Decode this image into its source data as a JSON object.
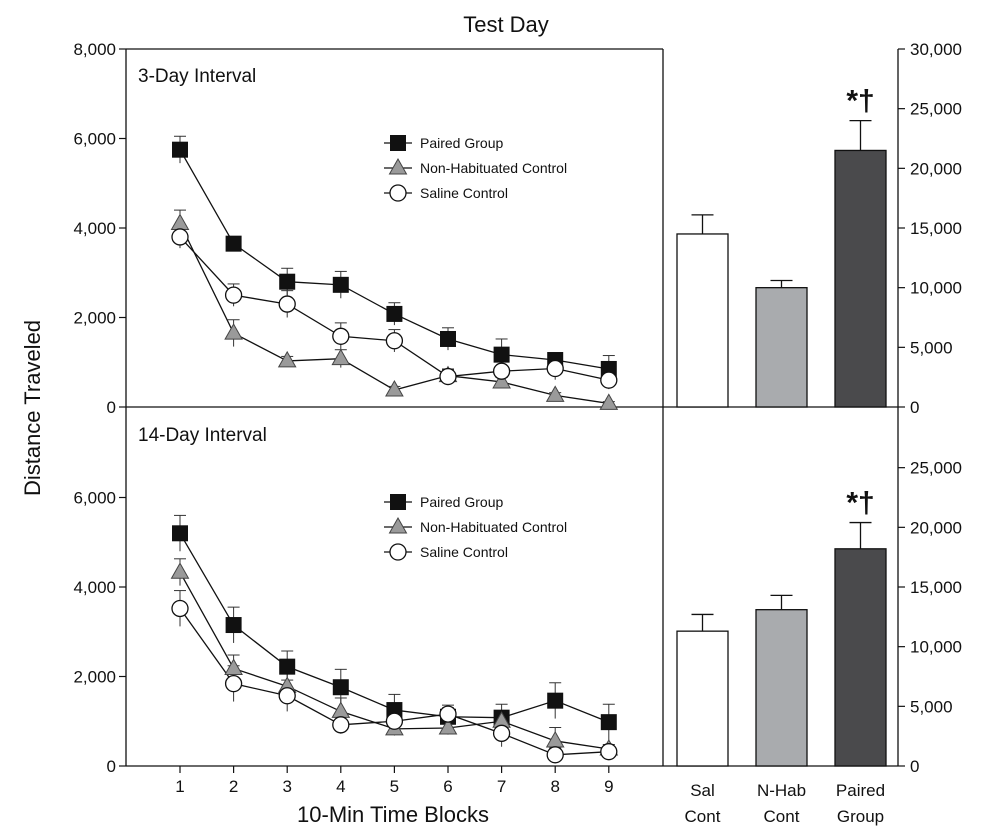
{
  "title": "Test Day",
  "ylabel": "Distance Traveled",
  "xlabel": "10-Min Time Blocks",
  "chart_data": [
    {
      "type": "line",
      "panel": "3-Day Interval",
      "x": [
        1,
        2,
        3,
        4,
        5,
        6,
        7,
        8,
        9
      ],
      "ylim": [
        0,
        8000
      ],
      "yticks": [
        "0",
        "2,000",
        "4,000",
        "6,000",
        "8,000"
      ],
      "legend_position": "top-center",
      "series": [
        {
          "name": "Paired Group",
          "marker": "square",
          "color": "#111111",
          "values": [
            5750,
            3650,
            2800,
            2730,
            2080,
            1520,
            1170,
            1050,
            850
          ],
          "errors": [
            300,
            150,
            300,
            300,
            250,
            250,
            350,
            150,
            300
          ]
        },
        {
          "name": "Non-Habituated Control",
          "marker": "triangle",
          "color": "#999999",
          "values": [
            4100,
            1650,
            1030,
            1080,
            380,
            700,
            560,
            260,
            80
          ],
          "errors": [
            300,
            300,
            100,
            200,
            80,
            150,
            100,
            60,
            40
          ]
        },
        {
          "name": "Saline Control",
          "marker": "circle",
          "color": "#ffffff",
          "values": [
            3800,
            2500,
            2300,
            1580,
            1480,
            680,
            800,
            860,
            600
          ],
          "errors": [
            250,
            250,
            300,
            300,
            250,
            150,
            250,
            250,
            200
          ]
        }
      ]
    },
    {
      "type": "bar",
      "panel": "3-Day Interval totals",
      "categories": [
        "Sal Cont",
        "N-Hab Cont",
        "Paired Group"
      ],
      "values": [
        14500,
        10000,
        21500
      ],
      "errors": [
        1600,
        600,
        2500
      ],
      "colors": [
        "#ffffff",
        "#a9abae",
        "#4a4a4c"
      ],
      "ylim": [
        0,
        30000
      ],
      "yticks": [
        "0",
        "5,000",
        "10,000",
        "15,000",
        "20,000",
        "25,000",
        "30,000"
      ],
      "annotation": "*†"
    },
    {
      "type": "line",
      "panel": "14-Day Interval",
      "x": [
        1,
        2,
        3,
        4,
        5,
        6,
        7,
        8,
        9
      ],
      "ylim": [
        0,
        8000
      ],
      "yticks": [
        "0",
        "2,000",
        "4,000",
        "6,000"
      ],
      "legend_position": "top-center",
      "series": [
        {
          "name": "Paired Group",
          "marker": "square",
          "color": "#111111",
          "values": [
            5200,
            3150,
            2220,
            1760,
            1250,
            1100,
            1080,
            1460,
            980
          ],
          "errors": [
            400,
            400,
            350,
            400,
            350,
            200,
            300,
            400,
            400
          ]
        },
        {
          "name": "Non-Habituated Control",
          "marker": "triangle",
          "color": "#999999",
          "values": [
            4330,
            2180,
            1780,
            1220,
            830,
            850,
            1000,
            560,
            380
          ],
          "errors": [
            300,
            300,
            300,
            300,
            150,
            150,
            200,
            300,
            100
          ]
        },
        {
          "name": "Saline Control",
          "marker": "circle",
          "color": "#ffffff",
          "values": [
            3520,
            1840,
            1570,
            920,
            1000,
            1160,
            730,
            250,
            320
          ],
          "errors": [
            400,
            400,
            350,
            200,
            200,
            200,
            300,
            150,
            100
          ]
        }
      ]
    },
    {
      "type": "bar",
      "panel": "14-Day Interval totals",
      "categories": [
        "Sal Cont",
        "N-Hab Cont",
        "Paired Group"
      ],
      "values": [
        11300,
        13100,
        18200
      ],
      "errors": [
        1400,
        1200,
        2200
      ],
      "colors": [
        "#ffffff",
        "#a9abae",
        "#4a4a4c"
      ],
      "ylim": [
        0,
        30000
      ],
      "yticks": [
        "0",
        "5,000",
        "10,000",
        "15,000",
        "20,000",
        "25,000"
      ],
      "annotation": "*†"
    }
  ],
  "xticks": [
    "1",
    "2",
    "3",
    "4",
    "5",
    "6",
    "7",
    "8",
    "9"
  ],
  "bar_labels": [
    [
      "Sal",
      "Cont"
    ],
    [
      "N-Hab",
      "Cont"
    ],
    [
      "Paired",
      "Group"
    ]
  ]
}
